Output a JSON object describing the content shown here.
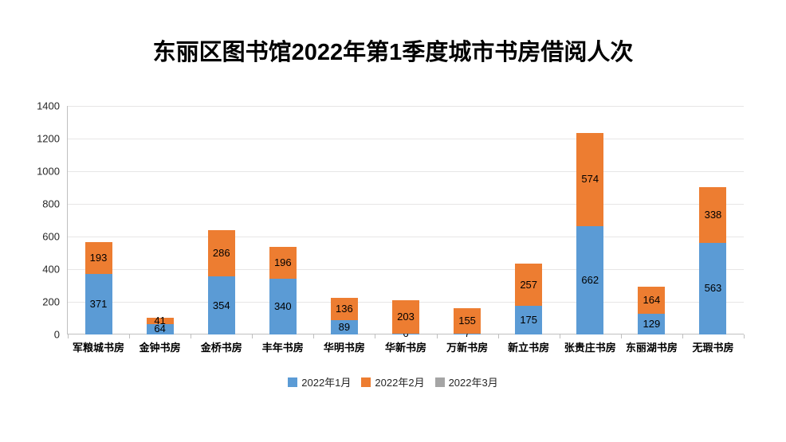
{
  "chart_data": {
    "type": "bar",
    "stacked": true,
    "title": "东丽区图书馆2022年第1季度城市书房借阅人次",
    "categories": [
      "军粮城书房",
      "金钟书房",
      "金桥书房",
      "丰年书房",
      "华明书房",
      "华新书房",
      "万新书房",
      "新立书房",
      "张贵庄书房",
      "东丽湖书房",
      "无瑕书房"
    ],
    "series": [
      {
        "name": "2022年1月",
        "color": "#5B9BD5",
        "values": [
          371,
          64,
          354,
          340,
          89,
          6,
          7,
          175,
          662,
          129,
          563
        ]
      },
      {
        "name": "2022年2月",
        "color": "#ED7D31",
        "values": [
          193,
          41,
          286,
          196,
          136,
          203,
          155,
          257,
          574,
          164,
          338
        ]
      },
      {
        "name": "2022年3月",
        "color": "#A5A5A5",
        "values": [
          0,
          0,
          0,
          0,
          0,
          0,
          0,
          0,
          0,
          0,
          0
        ]
      }
    ],
    "xlabel": "",
    "ylabel": "",
    "ylim": [
      0,
      1400
    ],
    "yticks": [
      0,
      200,
      400,
      600,
      800,
      1000,
      1200,
      1400
    ],
    "grid": true,
    "legend_position": "bottom",
    "colors": {
      "gridline": "#E7E6E6",
      "axis": "#BFBFBF",
      "data_label": "#000000",
      "tick_label": "#262626",
      "title": "#000000",
      "background": "#FFFFFF"
    }
  }
}
